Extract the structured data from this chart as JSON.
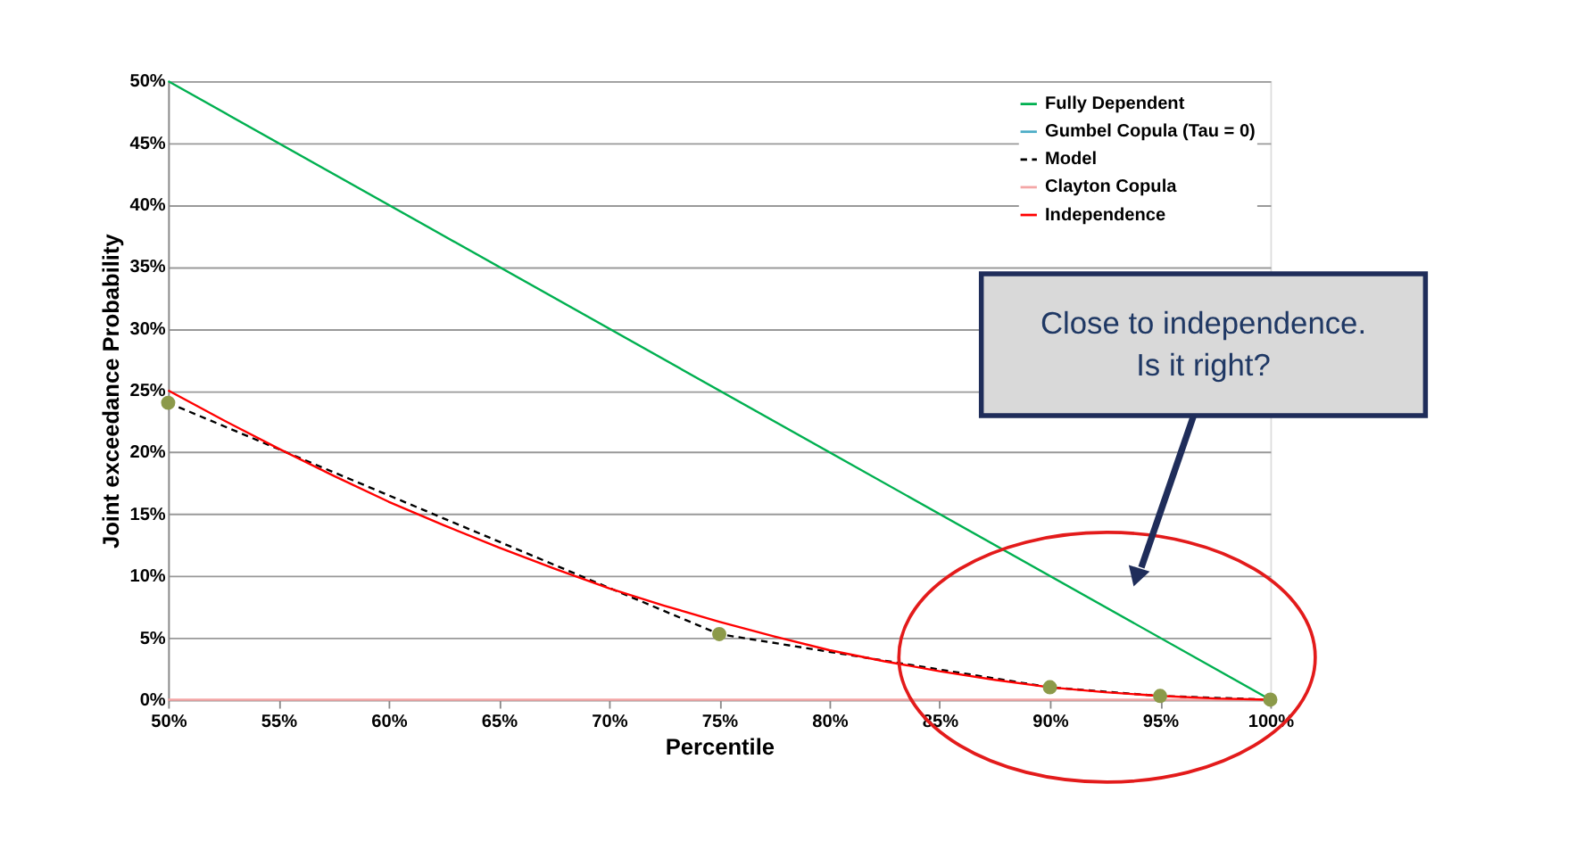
{
  "chart_data": {
    "type": "line",
    "xlabel": "Percentile",
    "ylabel": "Joint exceedance Probability",
    "xlim": [
      50,
      100
    ],
    "ylim": [
      0,
      50
    ],
    "xticks": [
      {
        "value": 50,
        "label": "50%"
      },
      {
        "value": 55,
        "label": "55%"
      },
      {
        "value": 60,
        "label": "60%"
      },
      {
        "value": 65,
        "label": "65%"
      },
      {
        "value": 70,
        "label": "70%"
      },
      {
        "value": 75,
        "label": "75%"
      },
      {
        "value": 80,
        "label": "80%"
      },
      {
        "value": 85,
        "label": "85%"
      },
      {
        "value": 90,
        "label": "90%"
      },
      {
        "value": 95,
        "label": "95%"
      },
      {
        "value": 100,
        "label": "100%"
      }
    ],
    "yticks": [
      {
        "value": 0,
        "label": "0%"
      },
      {
        "value": 5,
        "label": "5%"
      },
      {
        "value": 10,
        "label": "10%"
      },
      {
        "value": 15,
        "label": "15%"
      },
      {
        "value": 20,
        "label": "20%"
      },
      {
        "value": 25,
        "label": "25%"
      },
      {
        "value": 30,
        "label": "30%"
      },
      {
        "value": 35,
        "label": "35%"
      },
      {
        "value": 40,
        "label": "40%"
      },
      {
        "value": 45,
        "label": "45%"
      },
      {
        "value": 50,
        "label": "50%"
      }
    ],
    "grid": "y",
    "legend": "top right",
    "series": [
      {
        "name": "Fully Dependent",
        "color": "#00b050",
        "x": [
          50,
          100
        ],
        "values": [
          50,
          0
        ]
      },
      {
        "name": "Gumbel Copula (Tau = 0)",
        "color": "#4bacc6"
      },
      {
        "name": "Model",
        "color": "#000000",
        "line_style": "dashed",
        "marker": "circle",
        "x": [
          50,
          75,
          90,
          95,
          100
        ],
        "values": [
          24,
          5.3,
          1,
          0.3,
          0
        ]
      },
      {
        "name": "Clayton Copula",
        "color": "#f4a6a6",
        "x": [
          50,
          100
        ],
        "values": [
          0,
          0
        ]
      },
      {
        "name": "Independence",
        "color": "#ff0000",
        "x": [
          50,
          52.5,
          55,
          57.5,
          60,
          62.5,
          65,
          67.5,
          70,
          72.5,
          75,
          77.5,
          80,
          82.5,
          85,
          87.5,
          90,
          92.5,
          95,
          97.5,
          100
        ],
        "values": [
          25,
          22.6,
          20.3,
          18.1,
          16,
          14.1,
          12.3,
          10.6,
          9,
          7.6,
          6.3,
          5.1,
          4,
          3.1,
          2.3,
          1.6,
          1,
          0.6,
          0.3,
          0.1,
          0
        ]
      }
    ],
    "annotations": [
      "Close to independence.\nIs it right?"
    ]
  }
}
